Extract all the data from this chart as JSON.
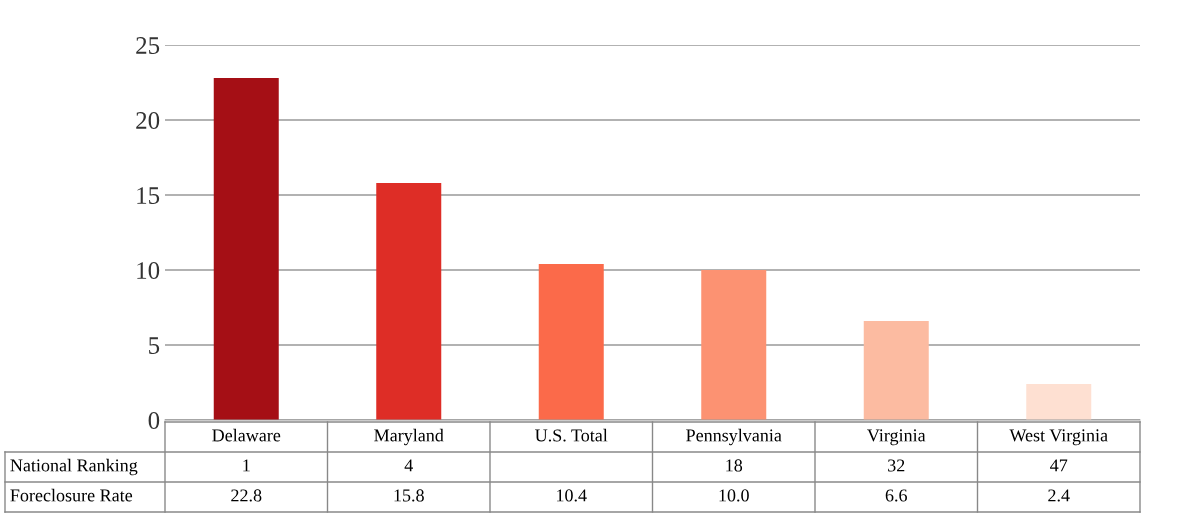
{
  "chart_data": {
    "type": "bar",
    "categories": [
      "Delaware",
      "Maryland",
      "U.S. Total",
      "Pennsylvania",
      "Virginia",
      "West Virginia"
    ],
    "series": [
      {
        "name": "Foreclosure Rate",
        "colors": [
          "#a50f15",
          "#de2d26",
          "#fb6a4a",
          "#fc9272",
          "#fcbba1",
          "#fee0d2"
        ],
        "values": [
          22.8,
          15.8,
          10.4,
          10.0,
          6.6,
          2.4
        ],
        "value_labels": [
          "22.8",
          "15.8",
          "10.4",
          "10.0",
          "6.6",
          "2.4"
        ]
      }
    ],
    "annotations": [
      "National Ranking",
      "1",
      "4",
      null,
      "18",
      "32",
      "47"
    ],
    "ylim": [
      0,
      25
    ],
    "yticks": [
      0,
      5,
      10,
      15,
      20,
      25
    ],
    "grid": "y",
    "legend": false
  }
}
